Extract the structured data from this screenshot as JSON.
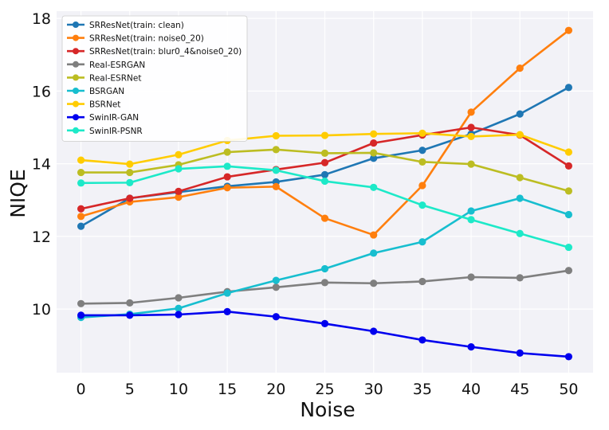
{
  "chart_data": {
    "type": "line",
    "title": "",
    "xlabel": "Noise",
    "ylabel": "NIQE",
    "x": [
      0,
      5,
      10,
      15,
      20,
      25,
      30,
      35,
      40,
      45,
      50
    ],
    "xlim": [
      -2.5,
      52.5
    ],
    "ylim": [
      8.25,
      18.2
    ],
    "xticks": [
      0,
      5,
      10,
      15,
      20,
      25,
      30,
      35,
      40,
      45,
      50
    ],
    "yticks": [
      10,
      12,
      14,
      16,
      18
    ],
    "grid": true,
    "legend_position": "top-left",
    "series": [
      {
        "name": "SRResNet(train: clean)",
        "color": "#1f77b4",
        "values": [
          12.28,
          13.05,
          13.22,
          13.38,
          13.5,
          13.7,
          14.15,
          14.37,
          14.82,
          15.37,
          16.1
        ]
      },
      {
        "name": "SRResNet(train: noise0_20)",
        "color": "#ff7f0e",
        "values": [
          12.55,
          12.95,
          13.08,
          13.34,
          13.37,
          12.5,
          12.04,
          13.4,
          15.42,
          16.63,
          17.67
        ]
      },
      {
        "name": "SRResNet(train: blur0_4&noise0_20)",
        "color": "#d62728",
        "values": [
          12.76,
          13.05,
          13.24,
          13.64,
          13.84,
          14.03,
          14.57,
          14.79,
          15.0,
          14.79,
          13.94
        ]
      },
      {
        "name": "Real-ESRGAN",
        "color": "#7f7f7f",
        "values": [
          10.15,
          10.17,
          10.31,
          10.48,
          10.6,
          10.73,
          10.71,
          10.76,
          10.88,
          10.86,
          11.06
        ]
      },
      {
        "name": "Real-ESRNet",
        "color": "#bcbd22",
        "values": [
          13.76,
          13.76,
          13.97,
          14.32,
          14.39,
          14.29,
          14.3,
          14.05,
          13.99,
          13.62,
          13.25
        ]
      },
      {
        "name": "BSRGAN",
        "color": "#17becf",
        "values": [
          9.77,
          9.86,
          10.02,
          10.44,
          10.79,
          11.11,
          11.54,
          11.85,
          12.7,
          13.05,
          12.6
        ]
      },
      {
        "name": "BSRNet",
        "color": "#ffcc00",
        "values": [
          14.1,
          13.99,
          14.25,
          14.64,
          14.77,
          14.78,
          14.82,
          14.84,
          14.75,
          14.8,
          14.32
        ]
      },
      {
        "name": "SwinIR-GAN",
        "color": "#0000ee",
        "values": [
          9.83,
          9.83,
          9.85,
          9.93,
          9.79,
          9.6,
          9.39,
          9.15,
          8.96,
          8.79,
          8.69
        ]
      },
      {
        "name": "SwinIR-PSNR",
        "color": "#1de9c8",
        "values": [
          13.47,
          13.48,
          13.86,
          13.93,
          13.82,
          13.52,
          13.35,
          12.86,
          12.46,
          12.08,
          11.7
        ]
      }
    ]
  }
}
